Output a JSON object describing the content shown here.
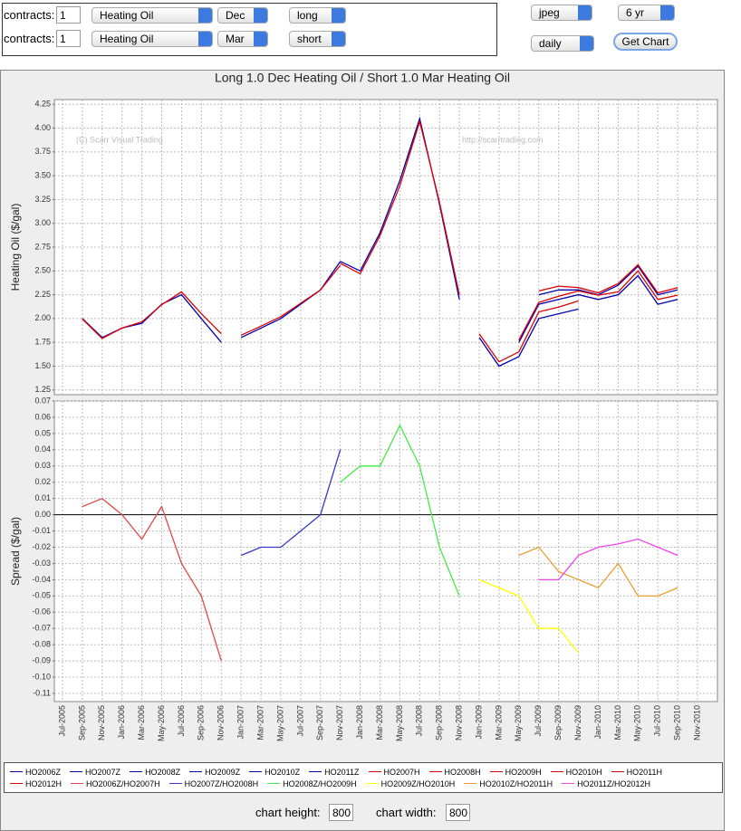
{
  "form": {
    "rows": [
      {
        "label": "contracts:",
        "qty": "1",
        "commodity": "Heating Oil",
        "month": "Dec",
        "side": "long"
      },
      {
        "label": "contracts:",
        "qty": "1",
        "commodity": "Heating Oil",
        "month": "Mar",
        "side": "short"
      }
    ],
    "format": "jpeg",
    "period": "6 yr",
    "frequency": "daily",
    "button": "Get Chart"
  },
  "footer": {
    "height_label": "chart height:",
    "height": "800",
    "width_label": "chart width:",
    "width": "800"
  },
  "chart_data": {
    "type": "line",
    "title": "Long 1.0 Dec Heating Oil / Short 1.0 Mar Heating Oil",
    "watermarks": [
      "(C) Scarr Visual Trading",
      "http://scarrtrading.com"
    ],
    "grid": true,
    "categories": [
      "Jul-2005",
      "Sep-2005",
      "Nov-2005",
      "Jan-2006",
      "Mar-2006",
      "May-2006",
      "Jul-2006",
      "Sep-2006",
      "Nov-2006",
      "Jan-2007",
      "Mar-2007",
      "May-2007",
      "Jul-2007",
      "Sep-2007",
      "Nov-2007",
      "Jan-2008",
      "Mar-2008",
      "May-2008",
      "Jul-2008",
      "Sep-2008",
      "Nov-2008",
      "Jan-2009",
      "Mar-2009",
      "May-2009",
      "Jul-2009",
      "Sep-2009",
      "Nov-2009",
      "Jan-2010",
      "Mar-2010",
      "May-2010",
      "Jul-2010",
      "Sep-2010",
      "Nov-2010"
    ],
    "panels": [
      {
        "ylabel": "Heating Oil ($/gal)",
        "ylim": [
          1.2,
          4.3
        ],
        "yticks": [
          1.25,
          {
            "value": 1.5,
            "label": "1.50"
          },
          1.75,
          {
            "value": 2,
            "label": "2.00"
          },
          2.25,
          {
            "value": 2.5,
            "label": "2.50"
          },
          2.75,
          {
            "value": 3,
            "label": "3.00"
          },
          3.25,
          {
            "value": 3.5,
            "label": "3.50"
          },
          3.75,
          {
            "value": 4,
            "label": "4.00"
          },
          4.25
        ],
        "series": [
          {
            "name": "HO2006Z",
            "color": "#0000b0",
            "values": [
              null,
              2.0,
              1.8,
              1.9,
              1.95,
              2.15,
              2.25,
              2.0,
              1.75,
              null,
              null,
              null,
              null,
              null,
              null,
              null,
              null,
              null,
              null,
              null,
              null,
              null,
              null,
              null,
              null,
              null,
              null,
              null,
              null,
              null,
              null,
              null,
              null
            ]
          },
          {
            "name": "HO2007Z",
            "color": "#0000b0",
            "values": [
              null,
              null,
              null,
              null,
              null,
              null,
              null,
              null,
              null,
              1.8,
              1.9,
              2.0,
              2.15,
              2.3,
              2.6,
              null,
              null,
              null,
              null,
              null,
              null,
              null,
              null,
              null,
              null,
              null,
              null,
              null,
              null,
              null,
              null,
              null,
              null
            ]
          },
          {
            "name": "HO2008Z",
            "color": "#0000b0",
            "values": [
              null,
              null,
              null,
              null,
              null,
              null,
              null,
              null,
              null,
              null,
              null,
              null,
              null,
              null,
              2.6,
              2.5,
              2.9,
              3.45,
              4.1,
              3.2,
              2.2,
              null,
              null,
              null,
              null,
              null,
              null,
              null,
              null,
              null,
              null,
              null,
              null
            ]
          },
          {
            "name": "HO2009Z",
            "color": "#0000b0",
            "values": [
              null,
              null,
              null,
              null,
              null,
              null,
              null,
              null,
              null,
              null,
              null,
              null,
              null,
              null,
              null,
              null,
              null,
              null,
              null,
              null,
              null,
              1.8,
              1.5,
              1.6,
              2.0,
              2.05,
              2.1,
              null,
              null,
              null,
              null,
              null,
              null
            ]
          },
          {
            "name": "HO2010Z",
            "color": "#0000b0",
            "values": [
              null,
              null,
              null,
              null,
              null,
              null,
              null,
              null,
              null,
              null,
              null,
              null,
              null,
              null,
              null,
              null,
              null,
              null,
              null,
              null,
              null,
              null,
              null,
              1.75,
              2.15,
              2.2,
              2.25,
              2.2,
              2.25,
              2.45,
              2.15,
              2.2,
              null
            ]
          },
          {
            "name": "HO2011Z",
            "color": "#0000b0",
            "values": [
              null,
              null,
              null,
              null,
              null,
              null,
              null,
              null,
              null,
              null,
              null,
              null,
              null,
              null,
              null,
              null,
              null,
              null,
              null,
              null,
              null,
              null,
              null,
              null,
              2.25,
              2.3,
              2.3,
              2.25,
              2.35,
              2.55,
              2.25,
              2.3,
              null
            ]
          },
          {
            "name": "HO2007H",
            "color": "#dd0000",
            "values": [
              null,
              1.995,
              1.79,
              1.9,
              1.965,
              2.145,
              2.28,
              2.05,
              1.84,
              null,
              null,
              null,
              null,
              null,
              null,
              null,
              null,
              null,
              null,
              null,
              null,
              null,
              null,
              null,
              null,
              null,
              null,
              null,
              null,
              null,
              null,
              null,
              null
            ]
          },
          {
            "name": "HO2008H",
            "color": "#dd0000",
            "values": [
              null,
              null,
              null,
              null,
              null,
              null,
              null,
              null,
              null,
              1.825,
              1.92,
              2.02,
              2.16,
              2.3,
              2.56,
              null,
              null,
              null,
              null,
              null,
              null,
              null,
              null,
              null,
              null,
              null,
              null,
              null,
              null,
              null,
              null,
              null,
              null
            ]
          },
          {
            "name": "HO2009H",
            "color": "#dd0000",
            "values": [
              null,
              null,
              null,
              null,
              null,
              null,
              null,
              null,
              null,
              null,
              null,
              null,
              null,
              null,
              2.58,
              2.47,
              2.87,
              3.395,
              4.07,
              3.22,
              2.25,
              null,
              null,
              null,
              null,
              null,
              null,
              null,
              null,
              null,
              null,
              null,
              null
            ]
          },
          {
            "name": "HO2010H",
            "color": "#dd0000",
            "values": [
              null,
              null,
              null,
              null,
              null,
              null,
              null,
              null,
              null,
              null,
              null,
              null,
              null,
              null,
              null,
              null,
              null,
              null,
              null,
              null,
              null,
              1.84,
              1.545,
              1.65,
              2.07,
              2.12,
              2.185,
              null,
              null,
              null,
              null,
              null,
              null
            ]
          },
          {
            "name": "HO2011H",
            "color": "#dd0000",
            "values": [
              null,
              null,
              null,
              null,
              null,
              null,
              null,
              null,
              null,
              null,
              null,
              null,
              null,
              null,
              null,
              null,
              null,
              null,
              null,
              null,
              null,
              null,
              null,
              1.775,
              2.17,
              2.235,
              2.29,
              2.245,
              2.28,
              2.5,
              2.2,
              2.245,
              null
            ]
          },
          {
            "name": "HO2012H",
            "color": "#dd0000",
            "values": [
              null,
              null,
              null,
              null,
              null,
              null,
              null,
              null,
              null,
              null,
              null,
              null,
              null,
              null,
              null,
              null,
              null,
              null,
              null,
              null,
              null,
              null,
              null,
              null,
              2.29,
              2.34,
              2.325,
              2.27,
              2.368,
              2.565,
              2.27,
              2.325,
              null
            ]
          }
        ]
      },
      {
        "ylabel": "Spread ($/gal)",
        "ylim": [
          -0.115,
          0.07
        ],
        "yticks": [
          0.07,
          0.06,
          0.05,
          0.04,
          0.03,
          0.02,
          0.01,
          {
            "value": 0,
            "label": "0.00"
          },
          -0.01,
          -0.02,
          -0.03,
          -0.04,
          -0.05,
          -0.06,
          -0.07,
          -0.08,
          -0.09,
          {
            "value": -0.1,
            "label": "-0.10"
          },
          -0.11
        ],
        "series": [
          {
            "name": "HO2006Z/HO2007H",
            "color": "#e04848",
            "values": [
              null,
              0.005,
              0.01,
              0.0,
              -0.015,
              0.005,
              -0.03,
              -0.05,
              -0.09,
              null,
              null,
              null,
              null,
              null,
              null,
              null,
              null,
              null,
              null,
              null,
              null,
              null,
              null,
              null,
              null,
              null,
              null,
              null,
              null,
              null,
              null,
              null,
              null
            ]
          },
          {
            "name": "HO2007Z/HO2008H",
            "color": "#3838cc",
            "values": [
              null,
              null,
              null,
              null,
              null,
              null,
              null,
              null,
              null,
              -0.025,
              -0.02,
              -0.02,
              -0.01,
              0.0,
              0.04,
              null,
              null,
              null,
              null,
              null,
              null,
              null,
              null,
              null,
              null,
              null,
              null,
              null,
              null,
              null,
              null,
              null,
              null
            ]
          },
          {
            "name": "HO2008Z/HO2009H",
            "color": "#44ee44",
            "values": [
              null,
              null,
              null,
              null,
              null,
              null,
              null,
              null,
              null,
              null,
              null,
              null,
              null,
              null,
              0.02,
              0.03,
              0.03,
              0.055,
              0.03,
              -0.02,
              -0.05,
              null,
              null,
              null,
              null,
              null,
              null,
              null,
              null,
              null,
              null,
              null,
              null
            ]
          },
          {
            "name": "HO2009Z/HO2010H",
            "color": "#ffff00",
            "values": [
              null,
              null,
              null,
              null,
              null,
              null,
              null,
              null,
              null,
              null,
              null,
              null,
              null,
              null,
              null,
              null,
              null,
              null,
              null,
              null,
              null,
              -0.04,
              -0.045,
              -0.05,
              -0.07,
              -0.07,
              -0.085,
              null,
              null,
              null,
              null,
              null,
              null
            ]
          },
          {
            "name": "HO2010Z/HO2011H",
            "color": "#e8a030",
            "values": [
              null,
              null,
              null,
              null,
              null,
              null,
              null,
              null,
              null,
              null,
              null,
              null,
              null,
              null,
              null,
              null,
              null,
              null,
              null,
              null,
              null,
              null,
              null,
              -0.025,
              -0.02,
              -0.035,
              -0.04,
              -0.045,
              -0.03,
              -0.05,
              -0.05,
              -0.045,
              null
            ]
          },
          {
            "name": "HO2011Z/HO2012H",
            "color": "#ee44ee",
            "values": [
              null,
              null,
              null,
              null,
              null,
              null,
              null,
              null,
              null,
              null,
              null,
              null,
              null,
              null,
              null,
              null,
              null,
              null,
              null,
              null,
              null,
              null,
              null,
              null,
              -0.04,
              -0.04,
              -0.025,
              -0.02,
              -0.018,
              -0.015,
              -0.02,
              -0.025,
              null
            ]
          }
        ]
      }
    ]
  }
}
